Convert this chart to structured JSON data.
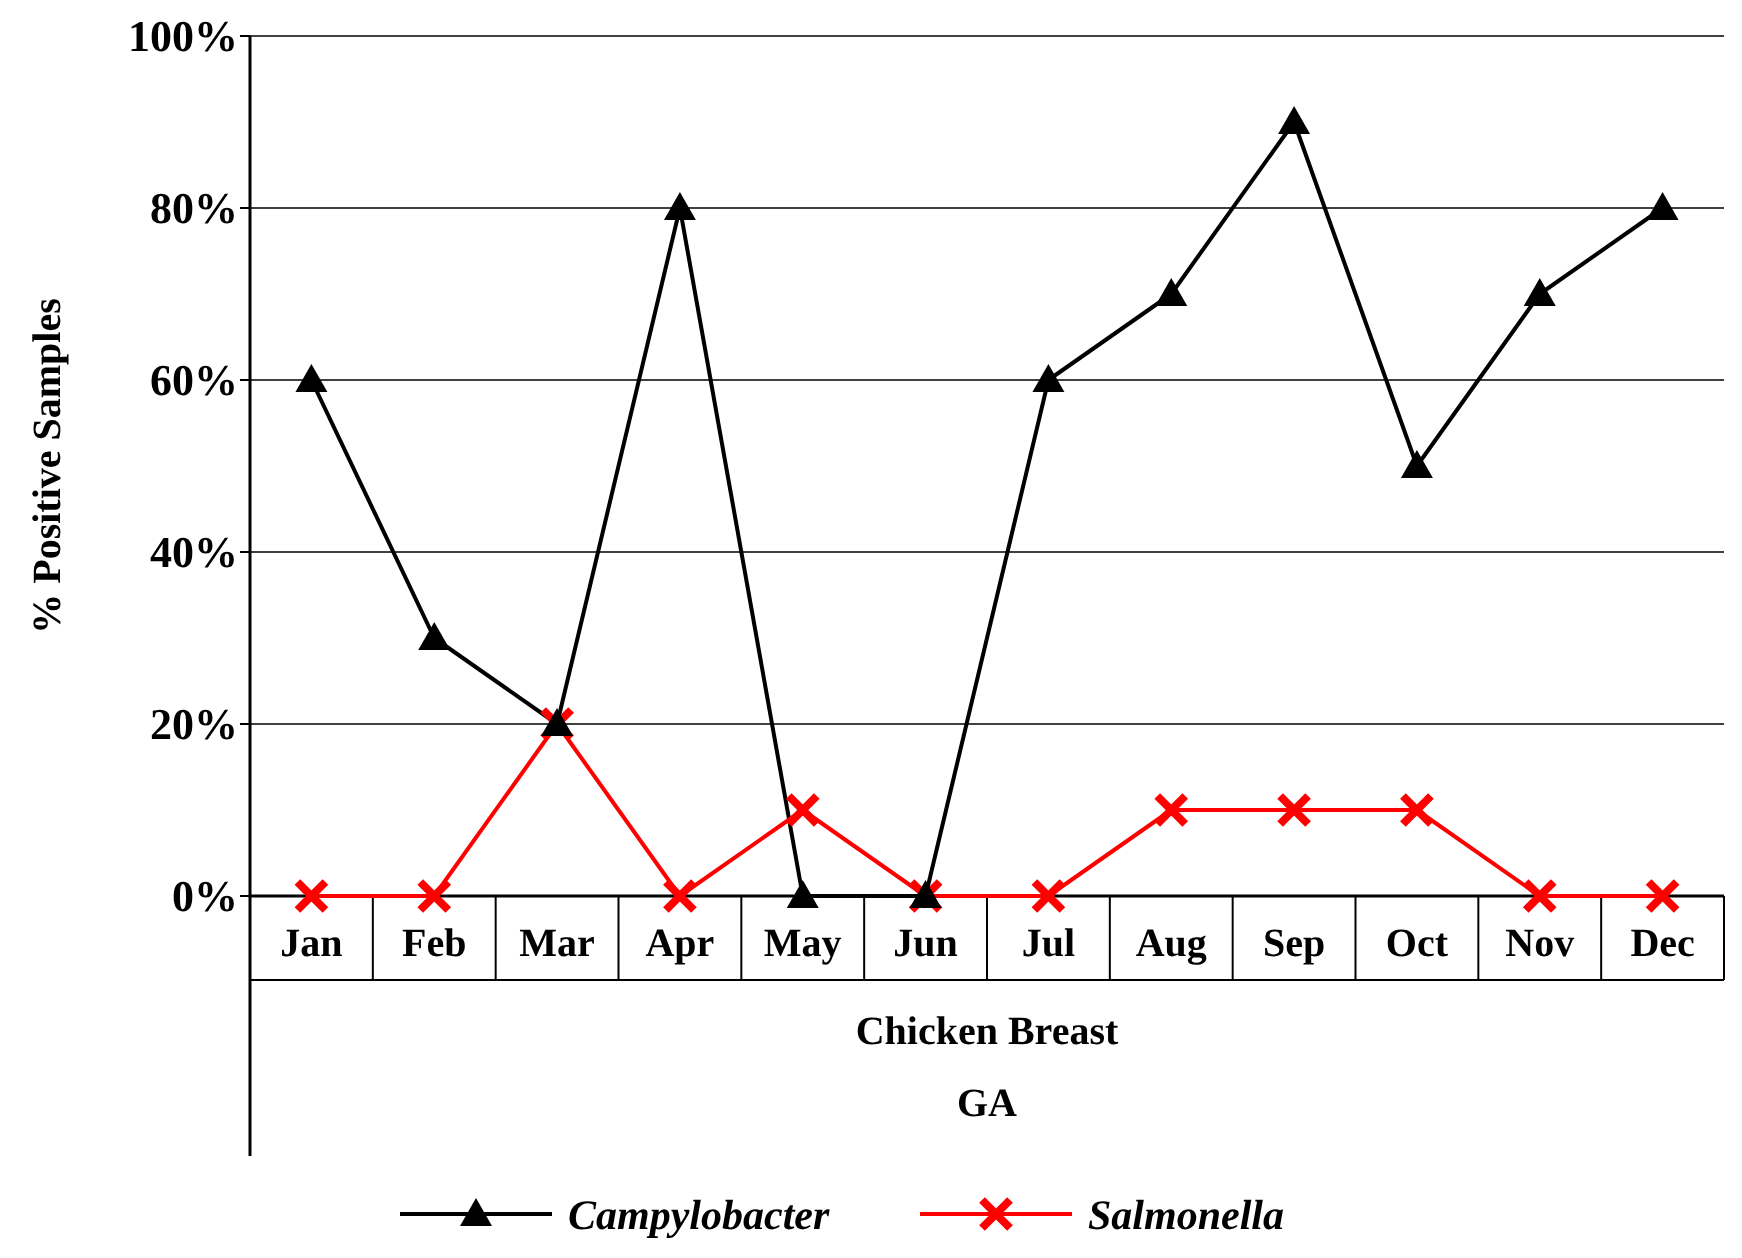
{
  "chart_data": {
    "type": "line",
    "ylabel": "% Positive Samples",
    "xlabel": "Chicken Breast",
    "annotations": [
      "GA"
    ],
    "categories": [
      "Jan",
      "Feb",
      "Mar",
      "Apr",
      "May",
      "Jun",
      "Jul",
      "Aug",
      "Sep",
      "Oct",
      "Nov",
      "Dec"
    ],
    "ylim": [
      0,
      100
    ],
    "yticks": [
      {
        "value": 0,
        "label": "0%"
      },
      {
        "value": 20,
        "label": "20%"
      },
      {
        "value": 40,
        "label": "40%"
      },
      {
        "value": 60,
        "label": "60%"
      },
      {
        "value": 80,
        "label": "80%"
      },
      {
        "value": 100,
        "label": "100%"
      }
    ],
    "grid": "y",
    "legend": "bottom",
    "line_style": "solid",
    "series": [
      {
        "name": "Campylobacter",
        "color": "#000000",
        "marker": "triangle",
        "values": [
          60,
          30,
          20,
          80,
          0,
          0,
          60,
          70,
          90,
          50,
          70,
          80
        ]
      },
      {
        "name": "Salmonella",
        "color": "#ff0000",
        "marker": "cross",
        "values": [
          0,
          0,
          20,
          0,
          10,
          0,
          0,
          10,
          10,
          10,
          0,
          0
        ]
      }
    ]
  }
}
